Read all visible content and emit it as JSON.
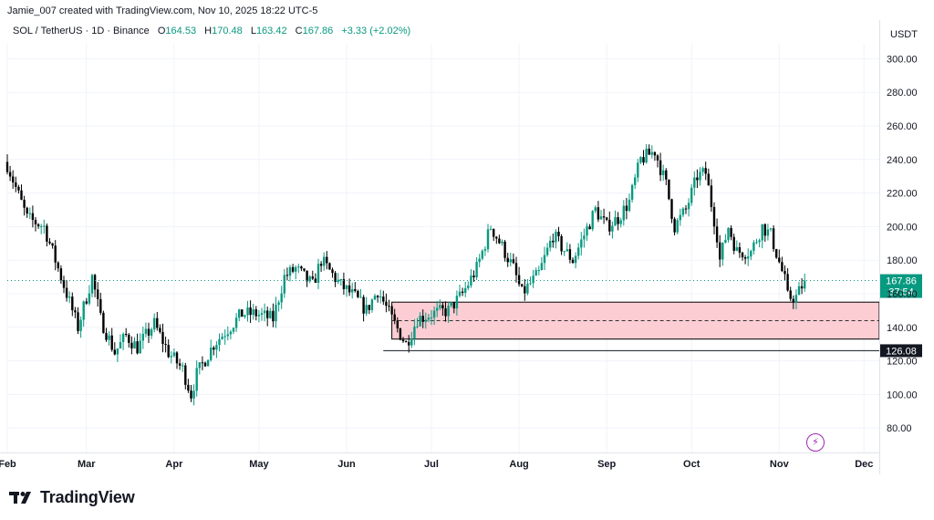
{
  "header": {
    "credit": "Jamie_007 created with TradingView.com, Nov 10, 2025 18:22 UTC-5",
    "symbol": "SOL / TetherUS · 1D · Binance",
    "open_label": "O",
    "open_value": "164.53",
    "high_label": "H",
    "high_value": "170.48",
    "low_label": "L",
    "low_value": "163.42",
    "close_label": "C",
    "close_value": "167.86",
    "change": "+3.33 (+2.02%)"
  },
  "branding": {
    "name": "TradingView",
    "logo_icon": "tradingview-logo-icon",
    "indicator_icon": "lightning-bolt-icon"
  },
  "colors": {
    "up": "#089981",
    "down": "#000000",
    "zone_fill": "#fccdd3",
    "zone_stroke": "#000000",
    "grid": "#f0f3fa",
    "price_line": "#089981"
  },
  "chart_data": {
    "type": "candlestick",
    "currency": "USDT",
    "y_ticks": [
      "300.00",
      "280.00",
      "260.00",
      "240.00",
      "220.00",
      "200.00",
      "180.00",
      "160.00",
      "140.00",
      "120.00",
      "100.00",
      "80.00"
    ],
    "x_ticks": [
      "Feb",
      "Mar",
      "Apr",
      "May",
      "Jun",
      "Jul",
      "Aug",
      "Sep",
      "Oct",
      "Nov",
      "Dec"
    ],
    "last_price": {
      "value": 167.86,
      "label": "167.86",
      "countdown": "37:54"
    },
    "support_line": {
      "value": 126.08,
      "label": "126.08"
    },
    "demand_zone": {
      "top": 155,
      "bottom": 133,
      "midline": 144,
      "start": "Jun 17"
    },
    "ylim": [
      70,
      310
    ],
    "anchors": [
      {
        "date": "Feb 1",
        "price": 237
      },
      {
        "date": "Feb 8",
        "price": 205
      },
      {
        "date": "Feb 14",
        "price": 200
      },
      {
        "date": "Feb 20",
        "price": 170
      },
      {
        "date": "Feb 26",
        "price": 140
      },
      {
        "date": "Mar 3",
        "price": 170
      },
      {
        "date": "Mar 6",
        "price": 145
      },
      {
        "date": "Mar 11",
        "price": 125
      },
      {
        "date": "Mar 15",
        "price": 135
      },
      {
        "date": "Mar 19",
        "price": 128
      },
      {
        "date": "Mar 25",
        "price": 142
      },
      {
        "date": "Mar 30",
        "price": 125
      },
      {
        "date": "Apr 4",
        "price": 115
      },
      {
        "date": "Apr 7",
        "price": 100
      },
      {
        "date": "Apr 9",
        "price": 112
      },
      {
        "date": "Apr 15",
        "price": 130
      },
      {
        "date": "Apr 20",
        "price": 139
      },
      {
        "date": "Apr 25",
        "price": 148
      },
      {
        "date": "Apr 30",
        "price": 148
      },
      {
        "date": "May 6",
        "price": 145
      },
      {
        "date": "May 10",
        "price": 170
      },
      {
        "date": "May 14",
        "price": 175
      },
      {
        "date": "May 20",
        "price": 165
      },
      {
        "date": "May 23",
        "price": 180
      },
      {
        "date": "May 30",
        "price": 165
      },
      {
        "date": "Jun 4",
        "price": 158
      },
      {
        "date": "Jun 8",
        "price": 150
      },
      {
        "date": "Jun 12",
        "price": 162
      },
      {
        "date": "Jun 17",
        "price": 145
      },
      {
        "date": "Jun 22",
        "price": 130
      },
      {
        "date": "Jun 26",
        "price": 145
      },
      {
        "date": "Jul 1",
        "price": 148
      },
      {
        "date": "Jul 7",
        "price": 150
      },
      {
        "date": "Jul 12",
        "price": 160
      },
      {
        "date": "Jul 17",
        "price": 175
      },
      {
        "date": "Jul 22",
        "price": 200
      },
      {
        "date": "Jul 26",
        "price": 188
      },
      {
        "date": "Jul 30",
        "price": 175
      },
      {
        "date": "Aug 2",
        "price": 160
      },
      {
        "date": "Aug 8",
        "price": 172
      },
      {
        "date": "Aug 13",
        "price": 195
      },
      {
        "date": "Aug 16",
        "price": 188
      },
      {
        "date": "Aug 20",
        "price": 180
      },
      {
        "date": "Aug 28",
        "price": 210
      },
      {
        "date": "Sep 1",
        "price": 200
      },
      {
        "date": "Sep 5",
        "price": 205
      },
      {
        "date": "Sep 9",
        "price": 215
      },
      {
        "date": "Sep 13",
        "price": 240
      },
      {
        "date": "Sep 18",
        "price": 245
      },
      {
        "date": "Sep 22",
        "price": 225
      },
      {
        "date": "Sep 25",
        "price": 200
      },
      {
        "date": "Sep 29",
        "price": 210
      },
      {
        "date": "Oct 3",
        "price": 230
      },
      {
        "date": "Oct 6",
        "price": 232
      },
      {
        "date": "Oct 10",
        "price": 195
      },
      {
        "date": "Oct 11",
        "price": 180
      },
      {
        "date": "Oct 14",
        "price": 200
      },
      {
        "date": "Oct 17",
        "price": 185
      },
      {
        "date": "Oct 22",
        "price": 185
      },
      {
        "date": "Oct 26",
        "price": 200
      },
      {
        "date": "Oct 29",
        "price": 195
      },
      {
        "date": "Nov 3",
        "price": 168
      },
      {
        "date": "Nov 4",
        "price": 158
      },
      {
        "date": "Nov 7",
        "price": 158
      },
      {
        "date": "Nov 10",
        "price": 167.86
      }
    ]
  }
}
